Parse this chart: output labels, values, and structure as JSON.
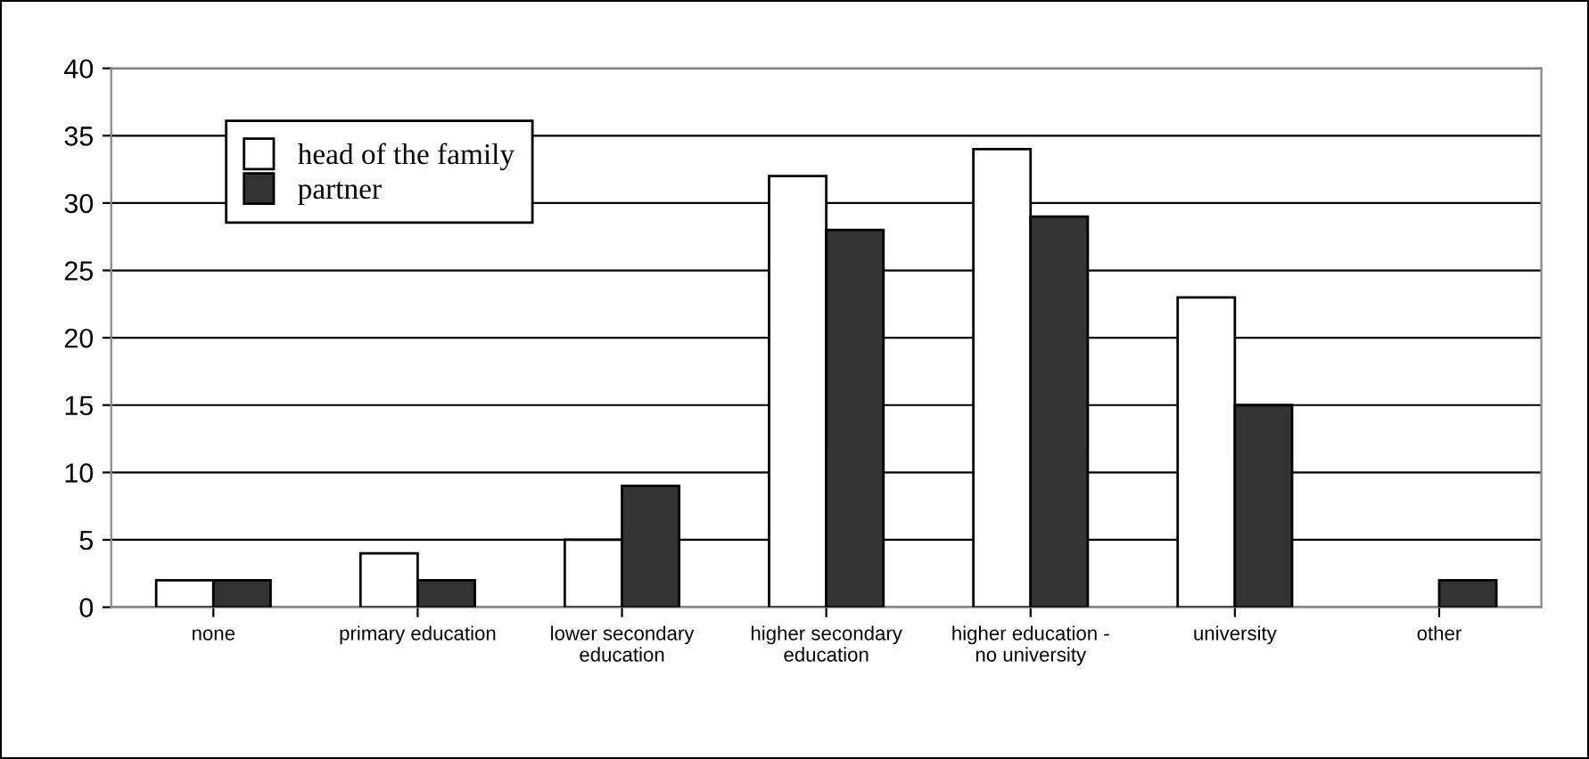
{
  "chart_data": {
    "type": "bar",
    "categories": [
      "none",
      "primary education",
      "lower secondary\neducation",
      "higher secondary\neducation",
      "higher education -\nno university",
      "university",
      "other"
    ],
    "series": [
      {
        "name": "head of the family",
        "color": "#ffffff",
        "values": [
          2,
          4,
          5,
          32,
          34,
          23,
          null
        ]
      },
      {
        "name": "partner",
        "color": "#333333",
        "values": [
          2,
          2,
          9,
          28,
          29,
          15,
          2
        ]
      }
    ],
    "ylim": [
      0,
      40
    ],
    "yticks": [
      0,
      5,
      10,
      15,
      20,
      25,
      30,
      35,
      40
    ],
    "grid": "y",
    "legend": "top left"
  }
}
